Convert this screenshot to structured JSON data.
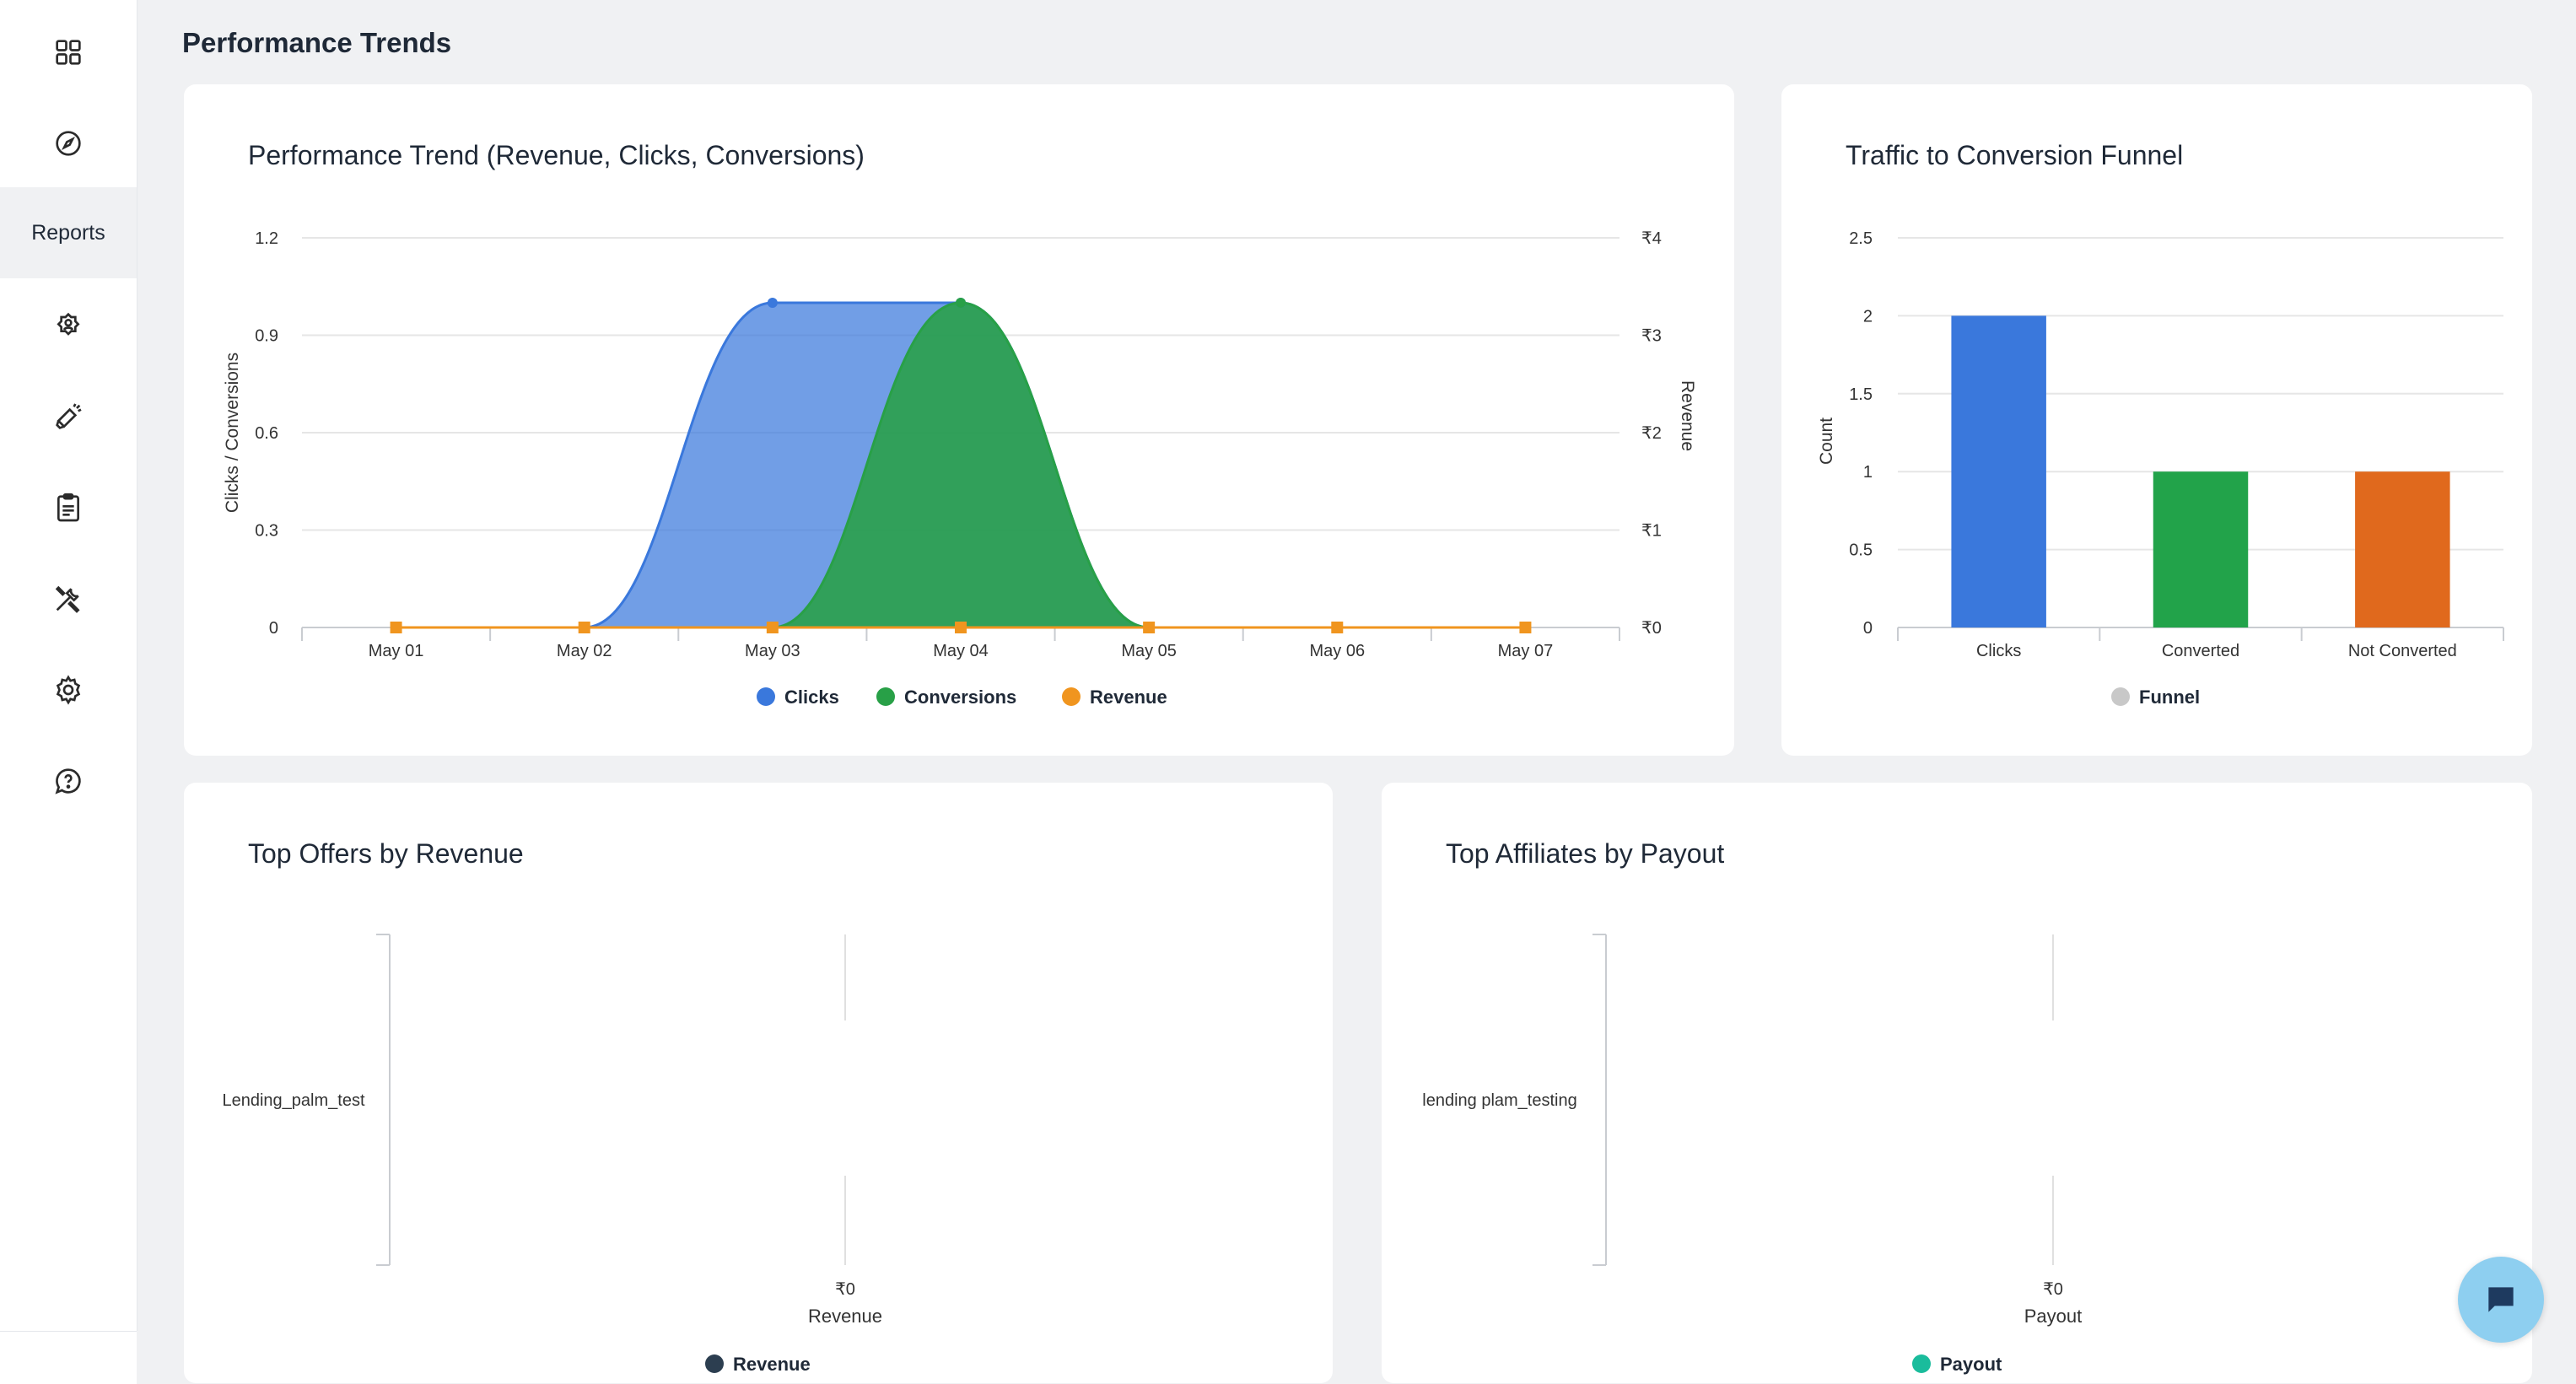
{
  "sidebar": {
    "items": [
      {
        "icon": "grid-icon"
      },
      {
        "icon": "compass-icon"
      },
      {
        "label": "Reports",
        "active": true
      },
      {
        "icon": "user-badge-icon"
      },
      {
        "icon": "megaphone-icon"
      },
      {
        "icon": "clipboard-icon"
      },
      {
        "icon": "tools-icon"
      },
      {
        "icon": "gear-icon"
      },
      {
        "icon": "help-chat-icon"
      }
    ]
  },
  "page": {
    "title": "Performance Trends"
  },
  "cards": {
    "trend": {
      "title": "Performance Trend (Revenue, Clicks, Conversions)"
    },
    "funnel": {
      "title": "Traffic to Conversion Funnel"
    },
    "offers": {
      "title": "Top Offers by Revenue"
    },
    "affiliates": {
      "title": "Top Affiliates by Payout"
    }
  },
  "chart_data": [
    {
      "id": "trend",
      "type": "area",
      "title": "Performance Trend (Revenue, Clicks, Conversions)",
      "categories": [
        "May 01",
        "May 02",
        "May 03",
        "May 04",
        "May 05",
        "May 06",
        "May 07"
      ],
      "ylabel": "Clicks / Conversions",
      "ylabel_right": "Revenue",
      "yticks": [
        "0",
        "0.3",
        "0.6",
        "0.9",
        "1.2"
      ],
      "yticks_right": [
        "₹0",
        "₹1",
        "₹2",
        "₹3",
        "₹4"
      ],
      "ylim": [
        0,
        1.2
      ],
      "ylim_right": [
        0,
        4
      ],
      "series": [
        {
          "name": "Clicks",
          "color": "#3a78dc",
          "values": [
            0,
            0,
            1,
            1,
            0,
            0,
            0
          ]
        },
        {
          "name": "Conversions",
          "color": "#28a047",
          "values": [
            0,
            0,
            0,
            1,
            0,
            0,
            0
          ]
        },
        {
          "name": "Revenue",
          "color": "#f0951f",
          "values": [
            0,
            0,
            0,
            0,
            0,
            0,
            0
          ]
        }
      ],
      "grid": true,
      "legend": "bottom"
    },
    {
      "id": "funnel",
      "type": "bar",
      "title": "Traffic to Conversion Funnel",
      "categories": [
        "Clicks",
        "Converted",
        "Not Converted"
      ],
      "values": [
        2,
        1,
        1
      ],
      "colors": [
        "#3a78dc",
        "#22a34a",
        "#e0691d"
      ],
      "ylabel": "Count",
      "yticks": [
        "0",
        "0.5",
        "1",
        "1.5",
        "2",
        "2.5"
      ],
      "ylim": [
        0,
        2.5
      ],
      "series": [
        {
          "name": "Funnel",
          "color": "#c8c8c8"
        }
      ],
      "grid": true,
      "legend": "bottom"
    },
    {
      "id": "offers",
      "type": "bar",
      "title": "Top Offers by Revenue",
      "categories": [
        "Lending_palm_test"
      ],
      "values": [
        0
      ],
      "xtick": "₹0",
      "xlabel": "Revenue",
      "series": [
        {
          "name": "Revenue",
          "color": "#2c3e50"
        }
      ],
      "legend": "bottom"
    },
    {
      "id": "affiliates",
      "type": "bar",
      "title": "Top Affiliates by Payout",
      "categories": [
        "lending plam_testing"
      ],
      "values": [
        0
      ],
      "xtick": "₹0",
      "xlabel": "Payout",
      "series": [
        {
          "name": "Payout",
          "color": "#1abc9c"
        }
      ],
      "legend": "bottom"
    }
  ],
  "colors": {
    "accent": "#3a78dc",
    "chat": "#8ecff0"
  }
}
